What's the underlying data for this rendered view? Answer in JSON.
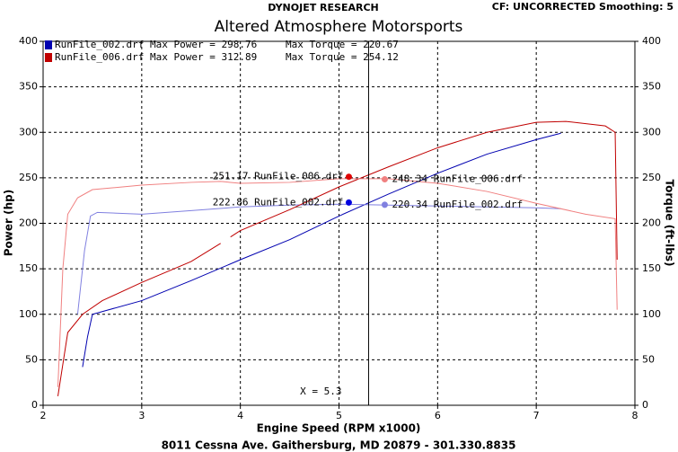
{
  "header": "DYNOJET RESEARCH",
  "settings_text": "CF: UNCORRECTED  Smoothing: 5",
  "footer": "8011 Cessna Ave. Gaithersburg, MD 20879 - 301.330.8835",
  "chart_data": {
    "type": "line",
    "title": "Altered Atmosphere Motorsports",
    "x_label": "Engine Speed (RPM x1000)",
    "y_label": "Power (hp)",
    "y2_label": "Torque (ft-lbs)",
    "xlim": [
      2,
      8
    ],
    "xticks": [
      2,
      3,
      4,
      5,
      6,
      7,
      8
    ],
    "ylim": [
      0,
      400
    ],
    "yticks": [
      0,
      50,
      100,
      150,
      200,
      250,
      300,
      350,
      400
    ],
    "y2lim": [
      0,
      400
    ],
    "y2ticks": [
      0,
      50,
      100,
      150,
      200,
      250,
      300,
      350,
      400
    ],
    "grid": true,
    "series": [
      {
        "name": "RunFile_002.drf",
        "legend_power": "Max Power = 298.76",
        "legend_torque": "Max Torque = 220.67",
        "color": "#0000b0",
        "x": [
          2.4,
          2.45,
          2.5,
          3,
          3.5,
          4,
          4.5,
          5,
          5.5,
          6,
          6.5,
          7,
          7.25
        ],
        "values": [
          42,
          75,
          100,
          115,
          137,
          160,
          182,
          208,
          232,
          255,
          276,
          292,
          299
        ]
      },
      {
        "color": "#8080e0",
        "axis": "y2",
        "x": [
          2.35,
          2.42,
          2.48,
          2.55,
          3,
          3.5,
          4,
          4.5,
          5,
          5.5,
          6,
          6.5,
          7,
          7.25
        ],
        "values": [
          100,
          170,
          208,
          212,
          210,
          214,
          218,
          220,
          221,
          220,
          219,
          218,
          217,
          216
        ]
      },
      {
        "name": "RunFile_006.drf",
        "legend_power": "Max Power = 312.89",
        "legend_torque": "Max Torque = 254.12",
        "color": "#c00000",
        "x": [
          2.15,
          2.25,
          2.4,
          2.6,
          3,
          3.5,
          3.8,
          3.85,
          3.9,
          4,
          4.5,
          5,
          5.5,
          6,
          6.5,
          7,
          7.3,
          7.7,
          7.8,
          7.82
        ],
        "values": [
          10,
          80,
          100,
          115,
          135,
          158,
          178,
          null,
          185,
          192,
          215,
          240,
          262,
          283,
          300,
          311,
          312,
          307,
          300,
          160
        ]
      },
      {
        "color": "#f08080",
        "axis": "y2",
        "x": [
          2.15,
          2.2,
          2.25,
          2.35,
          2.5,
          3,
          3.5,
          3.8,
          4,
          4.5,
          5,
          5.5,
          6,
          6.5,
          7,
          7.5,
          7.8,
          7.82
        ],
        "values": [
          20,
          150,
          210,
          228,
          237,
          242,
          245,
          246,
          244,
          245,
          249,
          249,
          244,
          235,
          222,
          210,
          205,
          105
        ]
      }
    ],
    "cursor": {
      "x": 5.3,
      "label": "X = 5.3"
    },
    "annotations": [
      {
        "value": 251.17,
        "label": "251.17 RunFile_006.drf",
        "color": "#e00000"
      },
      {
        "value": 248.34,
        "label": "248.34 RunFile_006.drf",
        "color": "#f08080"
      },
      {
        "value": 222.86,
        "label": "222.86 RunFile_002.drf",
        "color": "#0000e0"
      },
      {
        "value": 220.34,
        "label": "220.34 RunFile_002.drf",
        "color": "#8080e0"
      }
    ]
  }
}
